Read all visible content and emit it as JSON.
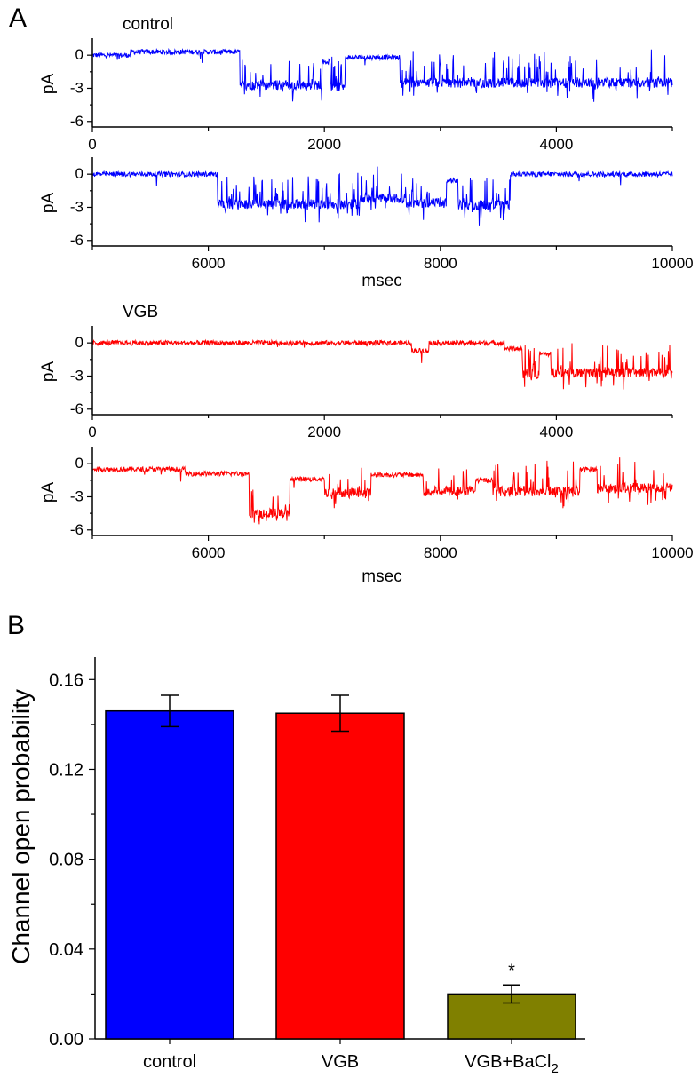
{
  "panel_letters": [
    "A",
    "B"
  ],
  "chart_data": [
    {
      "type": "line",
      "panel": "A",
      "condition": "control",
      "series_color": "#0000ff",
      "ylabel": "pA",
      "xlabel": "msec",
      "ylim": [
        -6.5,
        1.3
      ],
      "y_ticks": [
        0,
        -3,
        -6
      ],
      "y_tick_labels": [
        "0",
        "-3",
        "-6"
      ],
      "rows": [
        {
          "xlim": [
            0,
            5000
          ],
          "x_major_ticks": [
            0,
            2000,
            4000
          ],
          "x_tick_labels": [
            "0",
            "2000",
            "4000"
          ],
          "segments": [
            {
              "x0": 0,
              "x1": 330,
              "level": 0
            },
            {
              "x0": 330,
              "x1": 1270,
              "level": 0.3
            },
            {
              "x0": 1270,
              "x1": 1980,
              "level": -2.7
            },
            {
              "x0": 1980,
              "x1": 2050,
              "level": -0.6
            },
            {
              "x0": 2050,
              "x1": 2180,
              "level": -2.9
            },
            {
              "x0": 2180,
              "x1": 2650,
              "level": -0.2
            },
            {
              "x0": 2650,
              "x1": 5000,
              "level": -2.5
            }
          ]
        },
        {
          "xlim": [
            5000,
            10000
          ],
          "x_major_ticks": [
            6000,
            8000,
            10000
          ],
          "x_tick_labels": [
            "6000",
            "8000",
            "10000"
          ],
          "segments": [
            {
              "x0": 5000,
              "x1": 6080,
              "level": 0
            },
            {
              "x0": 6080,
              "x1": 7300,
              "level": -2.7
            },
            {
              "x0": 7300,
              "x1": 7700,
              "level": -2.2
            },
            {
              "x0": 7700,
              "x1": 8050,
              "level": -2.6
            },
            {
              "x0": 8050,
              "x1": 8150,
              "level": -0.6
            },
            {
              "x0": 8150,
              "x1": 8600,
              "level": -2.8
            },
            {
              "x0": 8600,
              "x1": 10000,
              "level": 0
            }
          ]
        }
      ]
    },
    {
      "type": "line",
      "panel": "A",
      "condition": "VGB",
      "series_color": "#ff0000",
      "ylabel": "pA",
      "xlabel": "msec",
      "ylim": [
        -6.5,
        1.3
      ],
      "y_ticks": [
        0,
        -3,
        -6
      ],
      "y_tick_labels": [
        "0",
        "-3",
        "-6"
      ],
      "rows": [
        {
          "xlim": [
            0,
            5000
          ],
          "x_major_ticks": [
            0,
            2000,
            4000
          ],
          "x_tick_labels": [
            "0",
            "2000",
            "4000"
          ],
          "segments": [
            {
              "x0": 0,
              "x1": 2750,
              "level": 0
            },
            {
              "x0": 2750,
              "x1": 2900,
              "level": -0.7
            },
            {
              "x0": 2900,
              "x1": 3550,
              "level": 0
            },
            {
              "x0": 3550,
              "x1": 3700,
              "level": -0.5
            },
            {
              "x0": 3700,
              "x1": 3850,
              "level": -2.8
            },
            {
              "x0": 3850,
              "x1": 3950,
              "level": -1.0
            },
            {
              "x0": 3950,
              "x1": 5000,
              "level": -2.7
            }
          ]
        },
        {
          "xlim": [
            5000,
            10000
          ],
          "x_major_ticks": [
            6000,
            8000,
            10000
          ],
          "x_tick_labels": [
            "6000",
            "8000",
            "10000"
          ],
          "segments": [
            {
              "x0": 5000,
              "x1": 5800,
              "level": -0.5
            },
            {
              "x0": 5800,
              "x1": 6350,
              "level": -0.9
            },
            {
              "x0": 6350,
              "x1": 6700,
              "level": -4.5
            },
            {
              "x0": 6700,
              "x1": 7000,
              "level": -1.4
            },
            {
              "x0": 7000,
              "x1": 7400,
              "level": -2.6
            },
            {
              "x0": 7400,
              "x1": 7850,
              "level": -1.0
            },
            {
              "x0": 7850,
              "x1": 8300,
              "level": -2.5
            },
            {
              "x0": 8300,
              "x1": 8450,
              "level": -1.5
            },
            {
              "x0": 8450,
              "x1": 9200,
              "level": -2.5
            },
            {
              "x0": 9200,
              "x1": 9350,
              "level": -0.5
            },
            {
              "x0": 9350,
              "x1": 10000,
              "level": -2.2
            }
          ]
        }
      ]
    },
    {
      "type": "bar",
      "panel": "B",
      "categories": [
        "control",
        "VGB",
        "VGB+BaCl2"
      ],
      "category_label_main": [
        "control",
        "VGB",
        "VGB+BaCl"
      ],
      "category_label_sub": [
        "",
        "",
        "2"
      ],
      "values": [
        0.146,
        0.145,
        0.02
      ],
      "errors": [
        0.007,
        0.008,
        0.004
      ],
      "colors": [
        "#0000ff",
        "#ff0000",
        "#808000"
      ],
      "significance": [
        "",
        "",
        "*"
      ],
      "ylabel": "Channel open probability",
      "ylim": [
        0,
        0.17
      ],
      "y_ticks": [
        0.0,
        0.04,
        0.08,
        0.12,
        0.16
      ],
      "y_tick_labels": [
        "0.00",
        "0.04",
        "0.08",
        "0.12",
        "0.16"
      ]
    }
  ]
}
